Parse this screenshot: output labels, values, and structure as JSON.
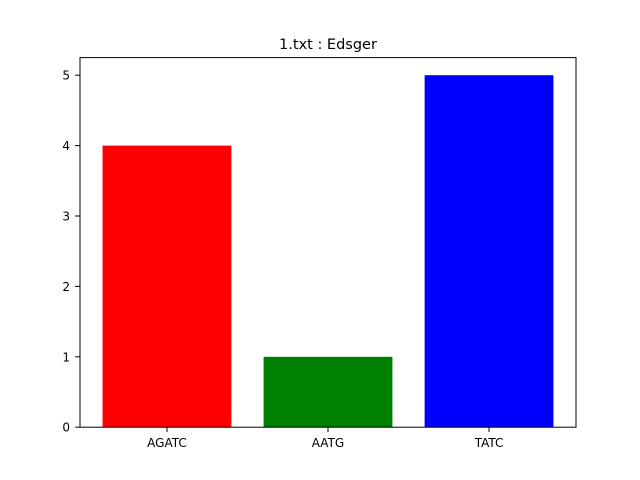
{
  "chart_data": {
    "type": "bar",
    "title": "1.txt : Edsger",
    "xlabel": "",
    "ylabel": "",
    "categories": [
      "AGATC",
      "AATG",
      "TATC"
    ],
    "values": [
      4,
      1,
      5
    ],
    "colors": [
      "#ff0000",
      "#008000",
      "#0000ff"
    ],
    "ylim": [
      0,
      5.25
    ],
    "yticks": [
      0,
      1,
      2,
      3,
      4,
      5
    ],
    "grid": false
  }
}
